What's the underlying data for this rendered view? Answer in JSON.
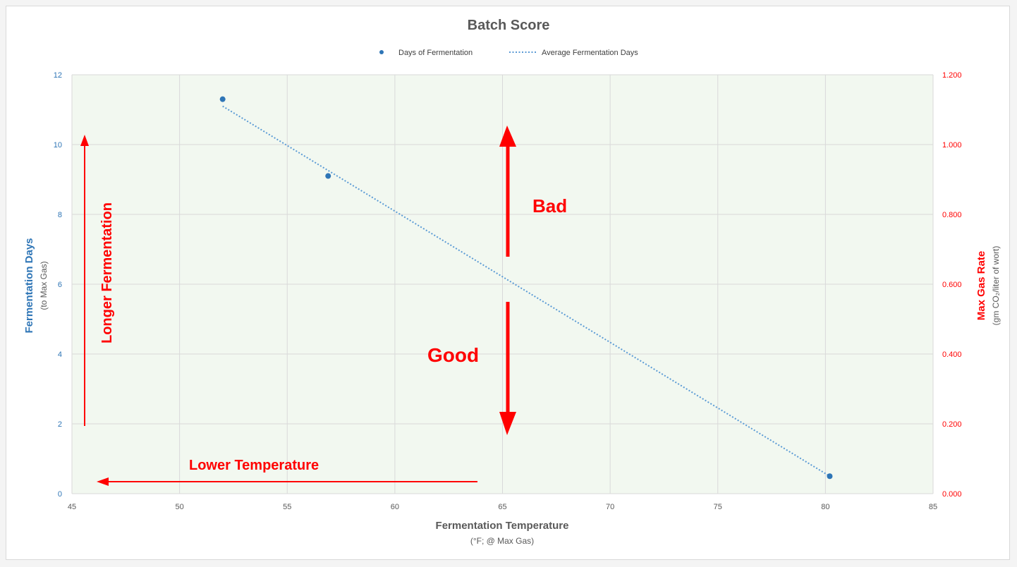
{
  "chart_data": {
    "type": "scatter",
    "title": "Batch Score",
    "legend": {
      "position": "top",
      "entries": [
        "Days of Fermentation",
        "Average Fermentation Days"
      ]
    },
    "x_axis": {
      "label": "Fermentation Temperature",
      "sublabel": "(°F; @ Max Gas)",
      "range": [
        45,
        85
      ],
      "ticks": [
        45,
        50,
        55,
        60,
        65,
        70,
        75,
        80,
        85
      ]
    },
    "y_axis_left": {
      "label": "Fermentation Days",
      "sublabel": "(to Max Gas)",
      "range": [
        0,
        12
      ],
      "ticks": [
        0,
        2,
        4,
        6,
        8,
        10,
        12
      ]
    },
    "y_axis_right": {
      "label": "Max Gas Rate",
      "sublabel": "(gm CO₂/liter of wort)",
      "range": [
        0,
        1.2
      ],
      "ticks": [
        "0.000",
        "0.200",
        "0.400",
        "0.600",
        "0.800",
        "1.000",
        "1.200"
      ]
    },
    "grid": true,
    "series": [
      {
        "name": "Days of Fermentation",
        "kind": "scatter",
        "color": "#2e75b6",
        "points": [
          [
            52,
            11.3
          ],
          [
            56.9,
            9.1
          ],
          [
            80.2,
            0.5
          ]
        ]
      },
      {
        "name": "Average Fermentation Days",
        "kind": "trendline",
        "style": "dotted",
        "color": "#5b9bd5",
        "points": [
          [
            52,
            11.1
          ],
          [
            80.2,
            0.5
          ]
        ]
      }
    ],
    "annotations": {
      "bad": "Bad",
      "good": "Good",
      "longer": "Longer Fermentation",
      "lower": "Lower Temperature"
    }
  },
  "colors": {
    "plot_bg": "#f2f8f0",
    "grid": "#d9d9d9",
    "left_axis": "#2e75b6",
    "right_axis": "#ff0000",
    "annotation": "#ff0000"
  }
}
